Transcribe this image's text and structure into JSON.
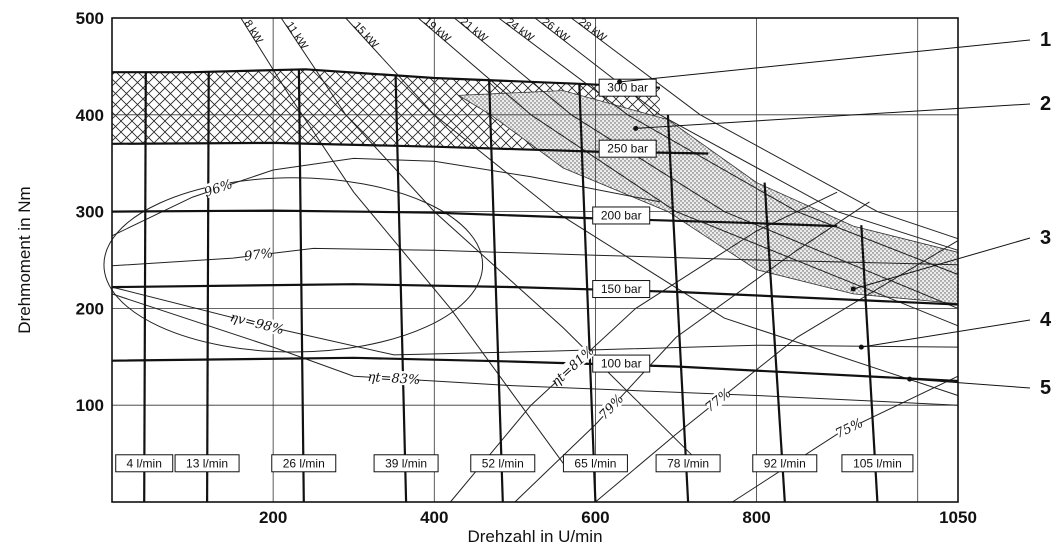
{
  "chart_data": {
    "type": "line",
    "title": "",
    "xlabel": "Drehzahl in U/min",
    "ylabel": "Drehmoment in Nm",
    "xlim": [
      0,
      1050
    ],
    "ylim": [
      0,
      500
    ],
    "grid": true,
    "x_ticks": [
      "200",
      "400",
      "600",
      "800",
      "1050"
    ],
    "y_ticks": [
      "100",
      "200",
      "300",
      "400",
      "500"
    ],
    "pressure_lines": [
      {
        "label": "300 bar",
        "points": [
          [
            0,
            444
          ],
          [
            100,
            444
          ],
          [
            240,
            447
          ],
          [
            400,
            438
          ],
          [
            580,
            432
          ],
          [
            680,
            428
          ]
        ]
      },
      {
        "label": "250 bar",
        "points": [
          [
            0,
            370
          ],
          [
            200,
            371
          ],
          [
            400,
            367
          ],
          [
            600,
            362
          ],
          [
            740,
            360
          ]
        ]
      },
      {
        "label": "200 bar",
        "points": [
          [
            0,
            300
          ],
          [
            200,
            301
          ],
          [
            400,
            299
          ],
          [
            600,
            293
          ],
          [
            800,
            288
          ],
          [
            900,
            285
          ]
        ]
      },
      {
        "label": "150 bar",
        "points": [
          [
            0,
            222
          ],
          [
            300,
            225
          ],
          [
            500,
            222
          ],
          [
            700,
            217
          ],
          [
            1050,
            204
          ]
        ]
      },
      {
        "label": "100 bar",
        "points": [
          [
            0,
            146
          ],
          [
            300,
            149
          ],
          [
            500,
            145
          ],
          [
            700,
            140
          ],
          [
            1050,
            125
          ]
        ]
      }
    ],
    "flow_lines": [
      {
        "label": "4 l/min",
        "points": [
          [
            40,
            0
          ],
          [
            42,
            444
          ]
        ]
      },
      {
        "label": "13 l/min",
        "points": [
          [
            118,
            0
          ],
          [
            120,
            444
          ]
        ]
      },
      {
        "label": "26 l/min",
        "points": [
          [
            238,
            0
          ],
          [
            232,
            447
          ]
        ]
      },
      {
        "label": "39 l/min",
        "points": [
          [
            365,
            0
          ],
          [
            352,
            440
          ]
        ]
      },
      {
        "label": "52 l/min",
        "points": [
          [
            485,
            0
          ],
          [
            468,
            436
          ]
        ]
      },
      {
        "label": "65 l/min",
        "points": [
          [
            600,
            0
          ],
          [
            580,
            432
          ]
        ]
      },
      {
        "label": "78 l/min",
        "points": [
          [
            715,
            0
          ],
          [
            690,
            400
          ]
        ]
      },
      {
        "label": "92 l/min",
        "points": [
          [
            835,
            0
          ],
          [
            810,
            330
          ]
        ]
      },
      {
        "label": "105 l/min",
        "points": [
          [
            950,
            0
          ],
          [
            930,
            286
          ]
        ]
      }
    ],
    "power_curves": [
      {
        "label": "8 kW",
        "points": [
          [
            160,
            500
          ],
          [
            220,
            420
          ],
          [
            300,
            320
          ],
          [
            420,
            200
          ],
          [
            560,
            40
          ]
        ]
      },
      {
        "label": "11 kW",
        "points": [
          [
            210,
            500
          ],
          [
            290,
            400
          ],
          [
            400,
            300
          ],
          [
            560,
            180
          ],
          [
            730,
            40
          ]
        ]
      },
      {
        "label": "15 kW",
        "points": [
          [
            290,
            500
          ],
          [
            400,
            400
          ],
          [
            550,
            300
          ],
          [
            760,
            190
          ],
          [
            1050,
            110
          ]
        ]
      },
      {
        "label": "19 kW",
        "points": [
          [
            380,
            500
          ],
          [
            520,
            400
          ],
          [
            700,
            300
          ],
          [
            1050,
            182
          ]
        ]
      },
      {
        "label": "21 kW",
        "points": [
          [
            425,
            500
          ],
          [
            570,
            400
          ],
          [
            760,
            300
          ],
          [
            1050,
            200
          ]
        ]
      },
      {
        "label": "24 kW",
        "points": [
          [
            480,
            500
          ],
          [
            640,
            400
          ],
          [
            850,
            300
          ],
          [
            1050,
            235
          ]
        ]
      },
      {
        "label": "26 kW",
        "points": [
          [
            525,
            500
          ],
          [
            680,
            400
          ],
          [
            900,
            300
          ],
          [
            1050,
            260
          ]
        ]
      },
      {
        "label": "28 kW",
        "points": [
          [
            570,
            500
          ],
          [
            730,
            400
          ],
          [
            950,
            300
          ],
          [
            1050,
            272
          ]
        ]
      }
    ],
    "efficiency_lines": [
      {
        "label": "96%",
        "points": [
          [
            0,
            275
          ],
          [
            100,
            315
          ],
          [
            200,
            343
          ],
          [
            300,
            355
          ],
          [
            400,
            352
          ],
          [
            520,
            336
          ],
          [
            680,
            310
          ]
        ]
      },
      {
        "label": "97%",
        "points": [
          [
            0,
            244
          ],
          [
            150,
            252
          ],
          [
            250,
            262
          ],
          [
            400,
            260
          ],
          [
            600,
            255
          ],
          [
            800,
            250
          ],
          [
            1050,
            245
          ]
        ]
      },
      {
        "label": "ηv=98%",
        "points": [
          [
            0,
            222
          ],
          [
            200,
            180
          ],
          [
            350,
            152
          ],
          [
            550,
            156
          ],
          [
            800,
            162
          ],
          [
            1050,
            160
          ]
        ]
      },
      {
        "label": "ηt=83%",
        "points": [
          [
            0,
            215
          ],
          [
            200,
            160
          ],
          [
            300,
            130
          ],
          [
            500,
            120
          ],
          [
            800,
            110
          ],
          [
            1050,
            100
          ]
        ]
      },
      {
        "label": "ηt=81%",
        "points": [
          [
            420,
            0
          ],
          [
            520,
            100
          ],
          [
            650,
            200
          ],
          [
            800,
            280
          ],
          [
            900,
            320
          ]
        ]
      },
      {
        "label": "79%",
        "points": [
          [
            500,
            0
          ],
          [
            600,
            80
          ],
          [
            700,
            170
          ],
          [
            850,
            260
          ],
          [
            940,
            310
          ]
        ]
      },
      {
        "label": "77%",
        "points": [
          [
            600,
            0
          ],
          [
            700,
            70
          ],
          [
            850,
            170
          ],
          [
            1050,
            270
          ]
        ]
      },
      {
        "label": "75%",
        "points": [
          [
            770,
            0
          ],
          [
            900,
            70
          ],
          [
            1050,
            130
          ]
        ]
      }
    ],
    "callouts": [
      "1",
      "2",
      "3",
      "4",
      "5"
    ]
  }
}
